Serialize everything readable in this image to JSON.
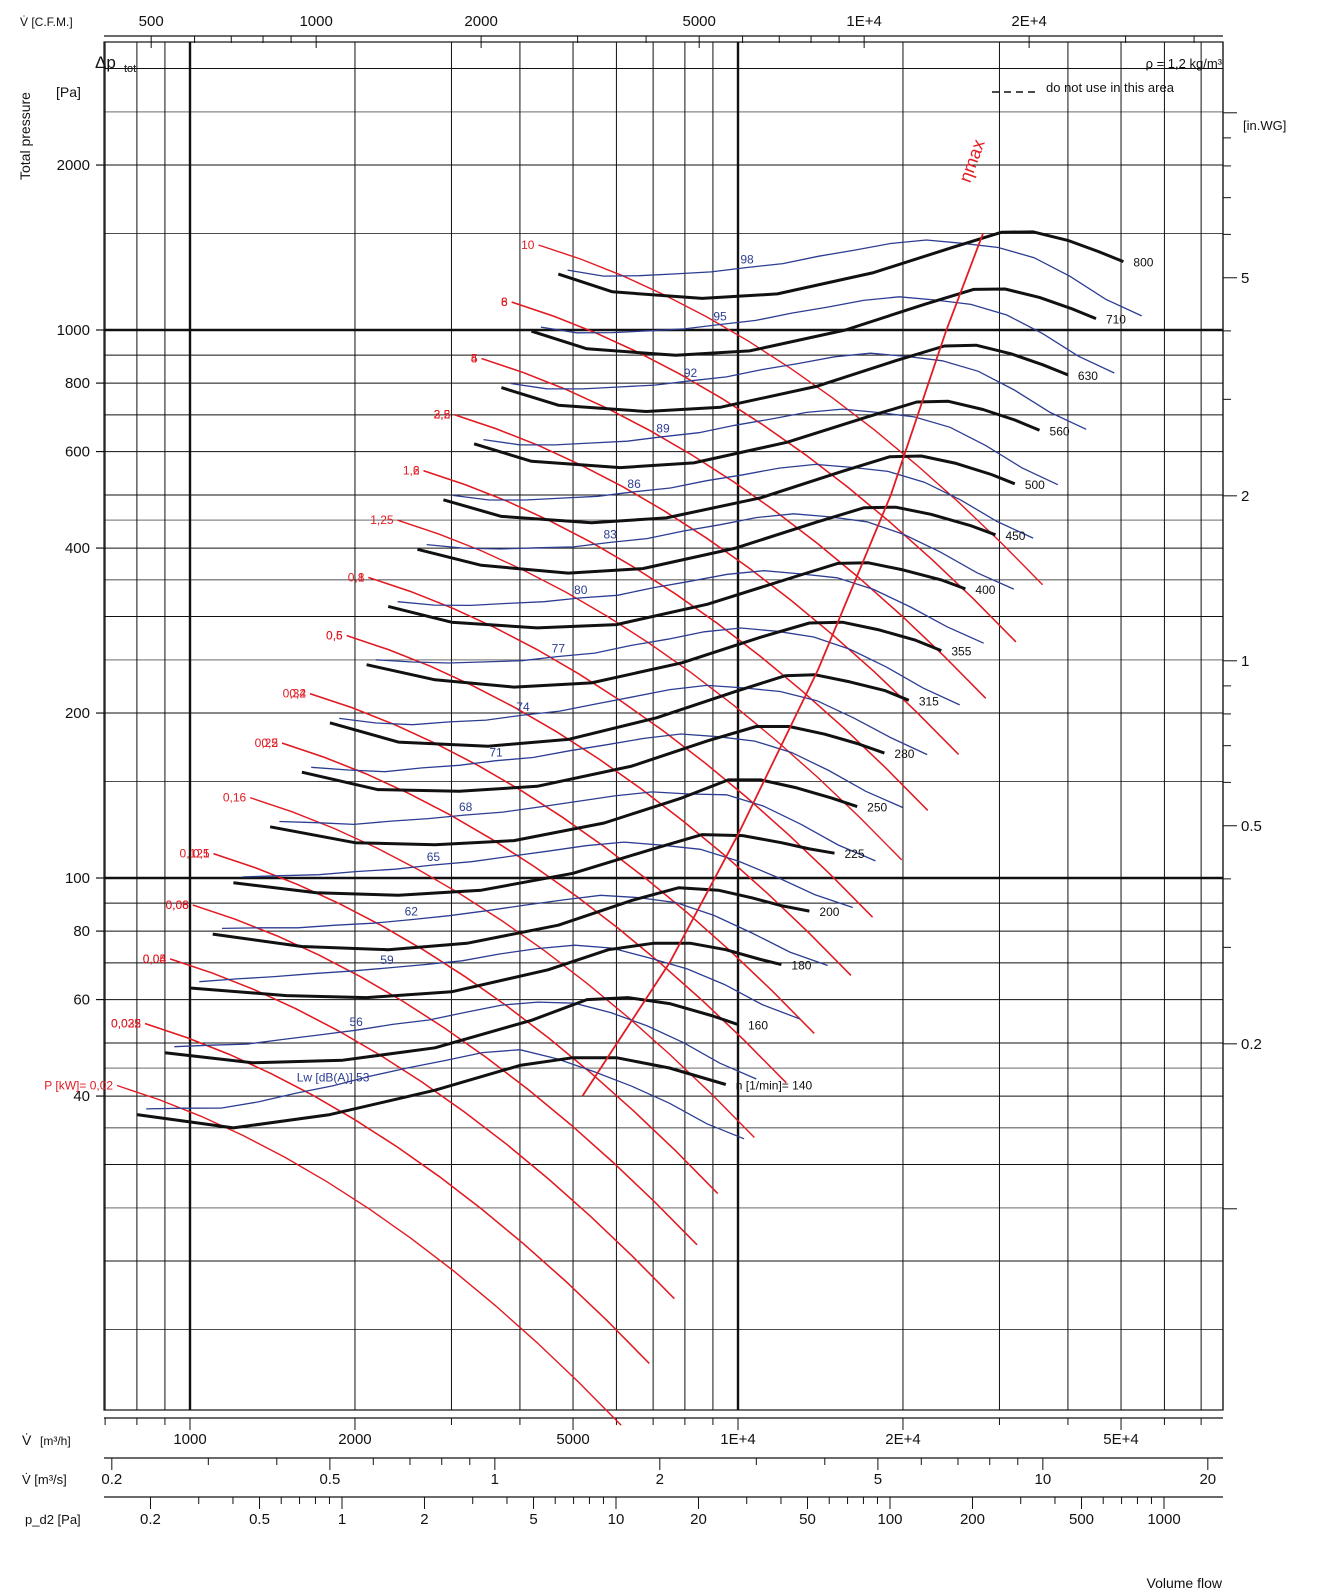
{
  "chart_data": {
    "type": "line",
    "scale": "log-log",
    "density_label": "ρ = 1,2 kg/m³",
    "legend_dashed": "do not use in this area",
    "y_axis": {
      "symbol": "Δp",
      "subscript": "tot",
      "unit": "[Pa]",
      "title": "Total pressure",
      "range": [
        33,
        2900
      ],
      "ticks": [
        40,
        60,
        80,
        100,
        200,
        400,
        600,
        800,
        1000,
        2000
      ],
      "tick_labels": [
        "40",
        "60",
        "80",
        "100",
        "200",
        "400",
        "600",
        "800",
        "1000",
        "2000"
      ]
    },
    "y_axis_right": {
      "unit": "[in.WG]",
      "ticks": [
        0.2,
        0.5,
        1,
        2,
        5
      ],
      "tick_labels": [
        "0.2",
        "0.5",
        "1",
        "2",
        "5"
      ]
    },
    "x_axis": {
      "symbol": "V̇",
      "unit": "[m³/h]",
      "title": "Volume flow",
      "range": [
        600,
        48000
      ],
      "ticks": [
        1000,
        2000,
        5000,
        10000,
        20000,
        50000
      ],
      "tick_labels": [
        "1000",
        "2000",
        "5000",
        "1E+4",
        "2E+4",
        "5E+4"
      ]
    },
    "x_axis_cfm": {
      "label": "V̇ [C.F.M.]",
      "ticks": [
        500,
        1000,
        2000,
        5000,
        10000,
        20000
      ],
      "tick_labels": [
        "500",
        "1000",
        "2000",
        "5000",
        "1E+4",
        "2E+4"
      ]
    },
    "x_axis_m3s": {
      "label": "V̇ [m³/s]",
      "ticks": [
        0.2,
        0.5,
        1,
        2,
        5,
        10,
        20
      ],
      "tick_labels": [
        "0.2",
        "0.5",
        "1",
        "2",
        "5",
        "10",
        "20"
      ]
    },
    "x_axis_pd2": {
      "label": "p_d2 [Pa]",
      "ticks": [
        0.2,
        0.5,
        1,
        2,
        5,
        10,
        20,
        50,
        100,
        200,
        500,
        1000
      ],
      "tick_labels": [
        "0.2",
        "0.5",
        "1",
        "2",
        "5",
        "10",
        "20",
        "50",
        "100",
        "200",
        "500",
        "1000"
      ]
    },
    "speed_label_prefix": "n [1/min]=",
    "speed_curves": [
      {
        "name": "140",
        "points": [
          [
            800,
            37
          ],
          [
            1200,
            35
          ],
          [
            1800,
            37
          ],
          [
            2800,
            41
          ],
          [
            4000,
            45.5
          ],
          [
            5000,
            47
          ],
          [
            6000,
            47
          ],
          [
            7500,
            45
          ],
          [
            9500,
            42
          ]
        ]
      },
      {
        "name": "160",
        "points": [
          [
            900,
            48
          ],
          [
            1300,
            46
          ],
          [
            1900,
            46.5
          ],
          [
            2800,
            49
          ],
          [
            4200,
            55
          ],
          [
            5300,
            60
          ],
          [
            6300,
            60.5
          ],
          [
            7500,
            59
          ],
          [
            9000,
            56
          ],
          [
            10000,
            54
          ]
        ]
      },
      {
        "name": "180",
        "points": [
          [
            1000,
            63
          ],
          [
            1500,
            61
          ],
          [
            2100,
            60.5
          ],
          [
            3000,
            62
          ],
          [
            4500,
            68
          ],
          [
            5800,
            74
          ],
          [
            7000,
            76
          ],
          [
            8200,
            76
          ],
          [
            9500,
            74
          ],
          [
            11000,
            71
          ],
          [
            12000,
            69.5
          ]
        ]
      },
      {
        "name": "200",
        "points": [
          [
            1100,
            79
          ],
          [
            1600,
            75
          ],
          [
            2300,
            74
          ],
          [
            3200,
            76
          ],
          [
            4700,
            82
          ],
          [
            6400,
            91
          ],
          [
            7800,
            96
          ],
          [
            9200,
            95
          ],
          [
            10600,
            92
          ],
          [
            12000,
            89
          ],
          [
            13500,
            87
          ]
        ]
      },
      {
        "name": "225",
        "points": [
          [
            1200,
            98
          ],
          [
            1700,
            94
          ],
          [
            2400,
            93
          ],
          [
            3400,
            95
          ],
          [
            5000,
            102
          ],
          [
            7000,
            113
          ],
          [
            8600,
            120
          ],
          [
            10200,
            119.5
          ],
          [
            12000,
            116
          ],
          [
            13500,
            113
          ],
          [
            15000,
            111
          ]
        ]
      },
      {
        "name": "250",
        "points": [
          [
            1400,
            124
          ],
          [
            2000,
            116
          ],
          [
            2800,
            115
          ],
          [
            3900,
            117
          ],
          [
            5700,
            126
          ],
          [
            7900,
            140
          ],
          [
            9600,
            151
          ],
          [
            11000,
            151
          ],
          [
            12800,
            146
          ],
          [
            14800,
            140
          ],
          [
            16500,
            135
          ]
        ]
      },
      {
        "name": "280",
        "points": [
          [
            1600,
            156
          ],
          [
            2200,
            145
          ],
          [
            3100,
            144
          ],
          [
            4300,
            147
          ],
          [
            6400,
            160
          ],
          [
            8800,
            178
          ],
          [
            10800,
            189
          ],
          [
            12400,
            189
          ],
          [
            14400,
            183
          ],
          [
            16500,
            176
          ],
          [
            18500,
            169
          ]
        ]
      },
      {
        "name": "315",
        "points": [
          [
            1800,
            192
          ],
          [
            2400,
            177
          ],
          [
            3500,
            174
          ],
          [
            4900,
            179
          ],
          [
            7100,
            196
          ],
          [
            9900,
            219
          ],
          [
            12200,
            234
          ],
          [
            13800,
            235
          ],
          [
            16000,
            228
          ],
          [
            18500,
            220
          ],
          [
            20500,
            211
          ]
        ]
      },
      {
        "name": "355",
        "points": [
          [
            2100,
            245
          ],
          [
            2800,
            230
          ],
          [
            3900,
            223
          ],
          [
            5400,
            227
          ],
          [
            7900,
            247
          ],
          [
            11000,
            275
          ],
          [
            13500,
            292
          ],
          [
            15500,
            293
          ],
          [
            18000,
            284
          ],
          [
            21000,
            272
          ],
          [
            23500,
            260
          ]
        ]
      },
      {
        "name": "400",
        "points": [
          [
            2300,
            313
          ],
          [
            3000,
            293
          ],
          [
            4300,
            286
          ],
          [
            6000,
            290
          ],
          [
            8800,
            316
          ],
          [
            12400,
            352
          ],
          [
            15200,
            375
          ],
          [
            17300,
            376
          ],
          [
            20000,
            365
          ],
          [
            23500,
            350
          ],
          [
            26000,
            337
          ]
        ]
      },
      {
        "name": "450",
        "points": [
          [
            2600,
            398
          ],
          [
            3400,
            372
          ],
          [
            4900,
            360
          ],
          [
            6700,
            367
          ],
          [
            9900,
            400
          ],
          [
            13900,
            446
          ],
          [
            17000,
            474
          ],
          [
            19400,
            475
          ],
          [
            22500,
            461
          ],
          [
            26500,
            440
          ],
          [
            29500,
            423
          ]
        ]
      },
      {
        "name": "500",
        "points": [
          [
            2900,
            490
          ],
          [
            3700,
            457
          ],
          [
            5400,
            445
          ],
          [
            7400,
            454
          ],
          [
            11000,
            494
          ],
          [
            15400,
            551
          ],
          [
            18900,
            587
          ],
          [
            21600,
            589
          ],
          [
            25000,
            571
          ],
          [
            29000,
            545
          ],
          [
            32000,
            524
          ]
        ]
      },
      {
        "name": "560",
        "points": [
          [
            3300,
            620
          ],
          [
            4200,
            576
          ],
          [
            6100,
            561
          ],
          [
            8300,
            572
          ],
          [
            12300,
            624
          ],
          [
            17300,
            695
          ],
          [
            21200,
            739
          ],
          [
            24200,
            741
          ],
          [
            28000,
            716
          ],
          [
            32000,
            685
          ],
          [
            35500,
            656
          ]
        ]
      },
      {
        "name": "630",
        "points": [
          [
            3700,
            785
          ],
          [
            4700,
            729
          ],
          [
            6800,
            710
          ],
          [
            9300,
            723
          ],
          [
            13900,
            789
          ],
          [
            19400,
            879
          ],
          [
            23800,
            935
          ],
          [
            27200,
            938
          ],
          [
            31500,
            905
          ],
          [
            36000,
            864
          ],
          [
            40000,
            828
          ]
        ]
      },
      {
        "name": "710",
        "points": [
          [
            4200,
            995
          ],
          [
            5300,
            924
          ],
          [
            7700,
            899
          ],
          [
            10500,
            916
          ],
          [
            15700,
            1000
          ],
          [
            21900,
            1114
          ],
          [
            26900,
            1186
          ],
          [
            30700,
            1188
          ],
          [
            35500,
            1147
          ],
          [
            40500,
            1095
          ],
          [
            45000,
            1049
          ]
        ]
      },
      {
        "name": "800",
        "points": [
          [
            4700,
            1265
          ],
          [
            5900,
            1174
          ],
          [
            8600,
            1142
          ],
          [
            11800,
            1164
          ],
          [
            17600,
            1271
          ],
          [
            24700,
            1416
          ],
          [
            30300,
            1508
          ],
          [
            34600,
            1510
          ],
          [
            40000,
            1457
          ],
          [
            45500,
            1390
          ],
          [
            50500,
            1333
          ]
        ]
      }
    ],
    "power_lines": {
      "label_prefix": "P [kW]=",
      "labels": [
        "0,02",
        "0,025",
        "0,032",
        "0,04",
        "0,05",
        "0,06",
        "0,08",
        "0,1",
        "0,125",
        "0,16",
        "0,2",
        "0,25",
        "0,32",
        "0,4",
        "0,5",
        "0,6",
        "0,8",
        "1",
        "1,25",
        "1,6",
        "2",
        "2,5",
        "3,2",
        "4",
        "5",
        "6",
        "8",
        "10"
      ]
    },
    "sound_lines": {
      "label_prefix": "Lw [dB(A)]",
      "labels": [
        "53",
        "56",
        "59",
        "62",
        "65",
        "68",
        "71",
        "74",
        "77",
        "80",
        "83",
        "86",
        "89",
        "92",
        "95",
        "98"
      ]
    },
    "efficiency_line": {
      "name": "ηmax"
    }
  }
}
